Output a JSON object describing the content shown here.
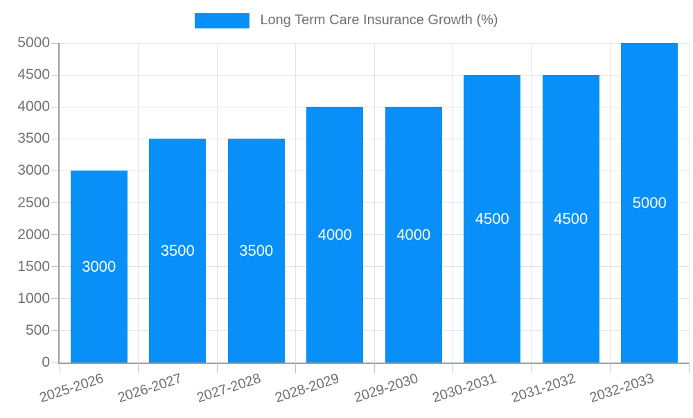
{
  "chart_data": {
    "type": "bar",
    "title": "Long Term Care Insurance Growth (%)",
    "legend": [
      "Long Term Care Insurance Growth (%)"
    ],
    "legend_position": "top-center",
    "categories": [
      "2025-2026",
      "2026-2027",
      "2027-2028",
      "2028-2029",
      "2029-2030",
      "2030-2031",
      "2031-2032",
      "2032-2033"
    ],
    "values": [
      3000,
      3500,
      3500,
      4000,
      4000,
      4500,
      4500,
      5000
    ],
    "bar_value_labels": [
      "3000",
      "3500",
      "3500",
      "4000",
      "4000",
      "4500",
      "4500",
      "5000"
    ],
    "bar_label_position": "inside-center",
    "xlabel": "",
    "ylabel": "",
    "ylim": [
      0,
      5000
    ],
    "ytick_step": 500,
    "ytick_labels": [
      "0",
      "500",
      "1000",
      "1500",
      "2000",
      "2500",
      "3000",
      "3500",
      "4000",
      "4500",
      "5000"
    ],
    "grid": true,
    "x_label_rotation_deg": 18,
    "colors": {
      "bar": "#0990f8",
      "grid": "#e3e3e3",
      "axis": "#9e9e9e",
      "tick": "#c2c2c2",
      "axis_text": "#707070",
      "legend_text": "#707070",
      "bar_label_text": "#ffffff",
      "background": "#ffffff"
    }
  }
}
